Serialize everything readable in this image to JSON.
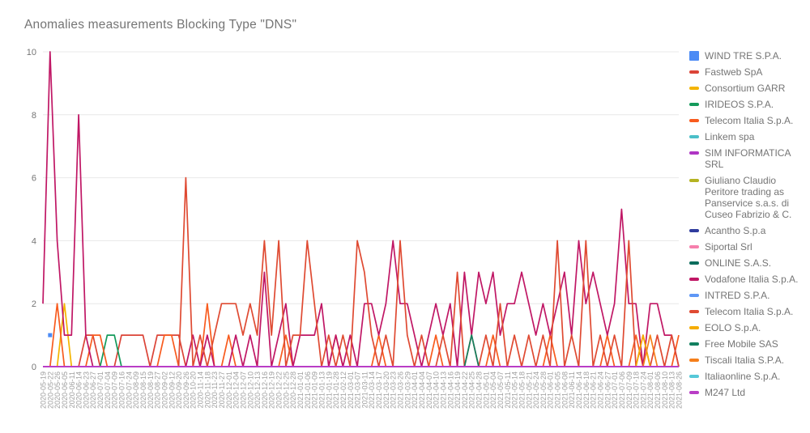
{
  "page": {
    "background": "#ffffff"
  },
  "colors": {
    "title_text": "#757575",
    "y_axis_text": "#757575",
    "x_axis_text": "#9E9E9E",
    "gridline": "#E8E8E8",
    "legend_text": "#757575"
  },
  "chart_data": {
    "type": "line",
    "title": "Anomalies measurements Blocking Type \"DNS\"",
    "xlabel": "",
    "ylabel": "",
    "ylim": [
      0,
      10
    ],
    "yticks": [
      0,
      2,
      4,
      6,
      8,
      10
    ],
    "grid": "horizontal",
    "legend_position": "right",
    "x": [
      "2020-05-19",
      "2020-05-22",
      "2020-05-26",
      "2020-06-05",
      "2020-06-11",
      "2020-06-14",
      "2020-06-23",
      "2020-06-27",
      "2020-07-01",
      "2020-07-04",
      "2020-07-09",
      "2020-07-16",
      "2020-07-24",
      "2020-08-09",
      "2020-08-15",
      "2020-08-19",
      "2020-08-27",
      "2020-09-02",
      "2020-09-12",
      "2020-09-20",
      "2020-09-26",
      "2020-10-20",
      "2020-11-14",
      "2020-11-18",
      "2020-11-23",
      "2020-11-27",
      "2020-12-01",
      "2020-12-04",
      "2020-12-07",
      "2020-12-10",
      "2020-12-13",
      "2020-12-16",
      "2020-12-19",
      "2020-12-22",
      "2020-12-25",
      "2020-12-28",
      "2021-01-01",
      "2021-01-06",
      "2021-01-09",
      "2021-01-13",
      "2021-01-19",
      "2021-01-28",
      "2021-02-12",
      "2021-03-01",
      "2021-03-07",
      "2021-03-11",
      "2021-03-14",
      "2021-03-17",
      "2021-03-20",
      "2021-03-23",
      "2021-03-26",
      "2021-03-29",
      "2021-04-01",
      "2021-04-04",
      "2021-04-07",
      "2021-04-10",
      "2021-04-13",
      "2021-04-16",
      "2021-04-19",
      "2021-04-22",
      "2021-04-25",
      "2021-04-28",
      "2021-05-01",
      "2021-05-04",
      "2021-05-07",
      "2021-05-11",
      "2021-05-14",
      "2021-05-18",
      "2021-05-21",
      "2021-05-24",
      "2021-05-28",
      "2021-06-01",
      "2021-06-05",
      "2021-06-08",
      "2021-06-11",
      "2021-06-14",
      "2021-06-18",
      "2021-06-21",
      "2021-06-24",
      "2021-06-27",
      "2021-07-01",
      "2021-07-06",
      "2021-07-09",
      "2021-07-18",
      "2021-07-24",
      "2021-08-01",
      "2021-08-06",
      "2021-08-10",
      "2021-08-13",
      "2021-08-26"
    ],
    "series": [
      {
        "name": "WIND TRE S.P.A.",
        "color": "#4C8BF5",
        "style": "point",
        "points": {
          "1": 1
        }
      },
      {
        "name": "Fastweb SpA",
        "color": "#DB4437",
        "points": {
          "6": 1,
          "7": 1,
          "11": 1,
          "12": 1,
          "13": 1,
          "14": 1,
          "16": 1,
          "17": 1,
          "18": 1,
          "19": 1
        }
      },
      {
        "name": "Consortium GARR",
        "color": "#F4B400",
        "points": {
          "3": 2
        }
      },
      {
        "name": "IRIDEOS S.P.A.",
        "color": "#149A5B",
        "points": {
          "9": 1,
          "10": 1
        }
      },
      {
        "name": "Telecom Italia S.p.A.",
        "color": "#F85B1E",
        "points": {
          "2": 2,
          "7": 1,
          "8": 1,
          "17": 1,
          "18": 1,
          "23": 2,
          "26": 1,
          "34": 1,
          "41": 1,
          "47": 1,
          "55": 1,
          "63": 1,
          "71": 1,
          "79": 1,
          "83": 1,
          "89": 1
        }
      },
      {
        "name": "Linkem spa",
        "color": "#4BBFC8",
        "points": {}
      },
      {
        "name": "SIM INFORMATICA SRL",
        "color": "#AF35C4",
        "points": {}
      },
      {
        "name": "Giuliano Claudio Peritore trading as Panservice s.a.s. di Cuseo Fabrizio & C.",
        "color": "#B5B322",
        "points": {}
      },
      {
        "name": "Acantho S.p.a",
        "color": "#2F3C9E",
        "points": {}
      },
      {
        "name": "Siportal Srl",
        "color": "#F67FAC",
        "points": {}
      },
      {
        "name": "ONLINE S.A.S.",
        "color": "#0B6C5C",
        "points": {}
      },
      {
        "name": "Vodafone Italia S.p.A.",
        "color": "#C01765",
        "points": {
          "0": 2,
          "1": 10,
          "2": 4,
          "3": 1,
          "4": 1,
          "5": 8,
          "6": 1,
          "21": 1,
          "23": 1,
          "27": 1,
          "29": 1,
          "31": 3,
          "33": 1,
          "34": 2,
          "36": 1,
          "37": 1,
          "38": 1,
          "39": 2,
          "41": 1,
          "43": 1,
          "45": 2,
          "46": 2,
          "47": 1,
          "48": 2,
          "49": 4,
          "50": 2,
          "51": 2,
          "52": 1,
          "54": 1,
          "55": 2,
          "56": 1,
          "57": 2,
          "59": 3,
          "60": 1,
          "61": 3,
          "62": 2,
          "63": 3,
          "64": 1,
          "65": 2,
          "66": 2,
          "67": 3,
          "68": 2,
          "69": 1,
          "70": 2,
          "71": 1,
          "72": 2,
          "73": 3,
          "74": 1,
          "75": 4,
          "76": 2,
          "77": 3,
          "78": 2,
          "79": 1,
          "80": 2,
          "81": 5,
          "82": 2,
          "83": 2,
          "85": 2,
          "86": 2,
          "87": 1,
          "88": 1
        }
      },
      {
        "name": "INTRED S.P.A.",
        "color": "#5E97F6",
        "points": {}
      },
      {
        "name": "Telecom Italia S.p.A.",
        "color": "#DF4A32",
        "points": {
          "20": 6,
          "22": 1,
          "24": 1,
          "25": 2,
          "26": 2,
          "27": 2,
          "28": 1,
          "29": 2,
          "30": 1,
          "31": 4,
          "32": 1,
          "33": 4,
          "35": 1,
          "36": 1,
          "37": 4,
          "38": 2,
          "40": 1,
          "42": 1,
          "44": 4,
          "45": 3,
          "46": 1,
          "48": 1,
          "50": 4,
          "51": 1,
          "53": 1,
          "56": 1,
          "58": 3,
          "60": 1,
          "62": 1,
          "64": 2,
          "66": 1,
          "68": 1,
          "70": 1,
          "72": 4,
          "74": 1,
          "76": 4,
          "78": 1,
          "80": 1,
          "82": 4,
          "84": 1,
          "86": 1,
          "88": 1
        }
      },
      {
        "name": "EOLO S.p.A.",
        "color": "#F5AC00",
        "points": {
          "84": 1
        }
      },
      {
        "name": "Free Mobile SAS",
        "color": "#12805F",
        "points": {
          "60": 1
        }
      },
      {
        "name": "Tiscali Italia S.P.A.",
        "color": "#F57F1B",
        "points": {
          "85": 1
        }
      },
      {
        "name": "Italiaonline S.p.A.",
        "color": "#56C8D8",
        "points": {}
      },
      {
        "name": "M247 Ltd",
        "color": "#B93DC6",
        "points": {}
      }
    ]
  }
}
